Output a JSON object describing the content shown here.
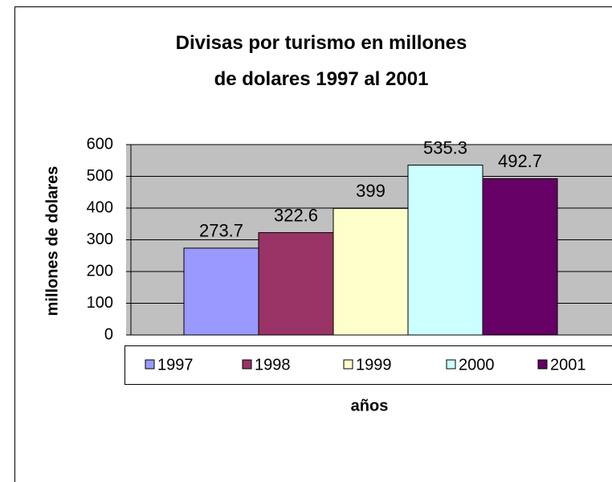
{
  "chart_data": {
    "type": "bar",
    "title": "Divisas por turismo en millones de dolares 1997 al 2001",
    "x_label": "años",
    "y_label": "millones de dolares",
    "categories": [
      null
    ],
    "series": [
      {
        "name": "1997",
        "color": "#9999ff",
        "values": [
          273.7
        ]
      },
      {
        "name": "1998",
        "color": "#993366",
        "values": [
          322.6
        ]
      },
      {
        "name": "1999",
        "color": "#ffffcc",
        "values": [
          399
        ]
      },
      {
        "name": "2000",
        "color": "#ccffff",
        "values": [
          535.3
        ]
      },
      {
        "name": "2001",
        "color": "#660066",
        "values": [
          492.7
        ]
      }
    ],
    "ylim": [
      0,
      600
    ],
    "yticks": [
      0,
      100,
      200,
      300,
      400,
      500,
      600
    ],
    "grid": true,
    "legend": "bottom",
    "plot_background": "#c0c0c0"
  }
}
